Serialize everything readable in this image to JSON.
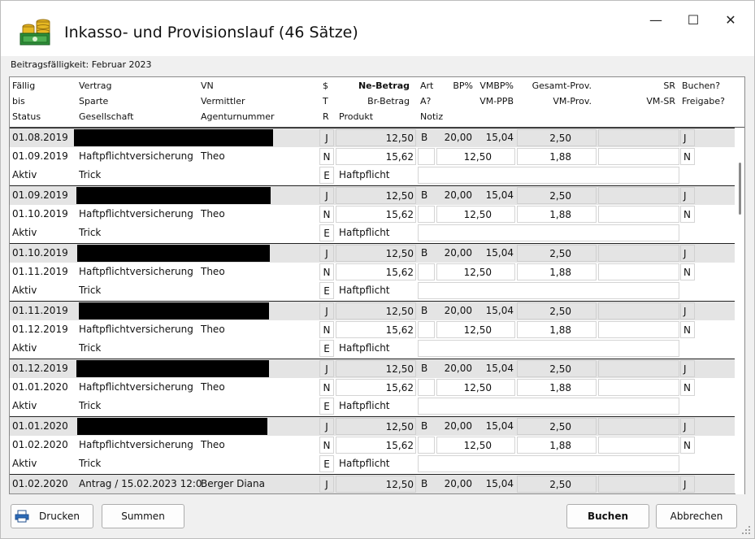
{
  "window": {
    "title": "Inkasso- und Provisionslauf (46 Sätze)",
    "subtitle": "Beitragsfälligkeit: Februar 2023",
    "minimize_glyph": "—",
    "maximize_glyph": "☐",
    "close_glyph": "✕"
  },
  "header": {
    "row1": {
      "faellig": "Fällig",
      "vertrag": "Vertrag",
      "vn": "VN",
      "s": "$",
      "ne_betrag": "Ne-Betrag",
      "art": "Art",
      "bp": "BP%",
      "vmbp": "VMBP%",
      "gesamt_prov": "Gesamt-Prov.",
      "sr": "SR",
      "buchen": "Buchen?"
    },
    "row2": {
      "bis": "bis",
      "sparte": "Sparte",
      "vermittler": "Vermittler",
      "t": "T",
      "br_betrag": "Br-Betrag",
      "a": "A?",
      "vm_ppb": "VM-PPB",
      "vm_prov": "VM-Prov.",
      "vm_sr": "VM-SR",
      "freigabe": "Freigabe?"
    },
    "row3": {
      "status": "Status",
      "gesellschaft": "Gesellschaft",
      "agenturnummer": "Agenturnummer",
      "r": "R",
      "produkt": "Produkt",
      "notiz": "Notiz"
    }
  },
  "records": [
    {
      "faellig": "01.08.2019",
      "s": "J",
      "ne_betrag": "12,50",
      "art": "B",
      "bp": "20,00",
      "vmbp": "15,04",
      "gesamt_prov": "2,50",
      "buchen": "J",
      "bis": "01.09.2019",
      "sparte": "Haftpflichtversicherung",
      "vermittler": "Theo",
      "t": "N",
      "br_betrag": "15,62",
      "vm_ppb": "12,50",
      "vm_prov": "1,88",
      "freigabe": "N",
      "status": "Aktiv",
      "gesellschaft": "Trick",
      "r": "E",
      "produkt": "Haftpflicht"
    },
    {
      "faellig": "01.09.2019",
      "s": "J",
      "ne_betrag": "12,50",
      "art": "B",
      "bp": "20,00",
      "vmbp": "15,04",
      "gesamt_prov": "2,50",
      "buchen": "J",
      "bis": "01.10.2019",
      "sparte": "Haftpflichtversicherung",
      "vermittler": "Theo",
      "t": "N",
      "br_betrag": "15,62",
      "vm_ppb": "12,50",
      "vm_prov": "1,88",
      "freigabe": "N",
      "status": "Aktiv",
      "gesellschaft": "Trick",
      "r": "E",
      "produkt": "Haftpflicht"
    },
    {
      "faellig": "01.10.2019",
      "s": "J",
      "ne_betrag": "12,50",
      "art": "B",
      "bp": "20,00",
      "vmbp": "15,04",
      "gesamt_prov": "2,50",
      "buchen": "J",
      "bis": "01.11.2019",
      "sparte": "Haftpflichtversicherung",
      "vermittler": "Theo",
      "t": "N",
      "br_betrag": "15,62",
      "vm_ppb": "12,50",
      "vm_prov": "1,88",
      "freigabe": "N",
      "status": "Aktiv",
      "gesellschaft": "Trick",
      "r": "E",
      "produkt": "Haftpflicht"
    },
    {
      "faellig": "01.11.2019",
      "s": "J",
      "ne_betrag": "12,50",
      "art": "B",
      "bp": "20,00",
      "vmbp": "15,04",
      "gesamt_prov": "2,50",
      "buchen": "J",
      "bis": "01.12.2019",
      "sparte": "Haftpflichtversicherung",
      "vermittler": "Theo",
      "t": "N",
      "br_betrag": "15,62",
      "vm_ppb": "12,50",
      "vm_prov": "1,88",
      "freigabe": "N",
      "status": "Aktiv",
      "gesellschaft": "Trick",
      "r": "E",
      "produkt": "Haftpflicht"
    },
    {
      "faellig": "01.12.2019",
      "s": "J",
      "ne_betrag": "12,50",
      "art": "B",
      "bp": "20,00",
      "vmbp": "15,04",
      "gesamt_prov": "2,50",
      "buchen": "J",
      "bis": "01.01.2020",
      "sparte": "Haftpflichtversicherung",
      "vermittler": "Theo",
      "t": "N",
      "br_betrag": "15,62",
      "vm_ppb": "12,50",
      "vm_prov": "1,88",
      "freigabe": "N",
      "status": "Aktiv",
      "gesellschaft": "Trick",
      "r": "E",
      "produkt": "Haftpflicht"
    },
    {
      "faellig": "01.01.2020",
      "s": "J",
      "ne_betrag": "12,50",
      "art": "B",
      "bp": "20,00",
      "vmbp": "15,04",
      "gesamt_prov": "2,50",
      "buchen": "J",
      "bis": "01.02.2020",
      "sparte": "Haftpflichtversicherung",
      "vermittler": "Theo",
      "t": "N",
      "br_betrag": "15,62",
      "vm_ppb": "12,50",
      "vm_prov": "1,88",
      "freigabe": "N",
      "status": "Aktiv",
      "gesellschaft": "Trick",
      "r": "E",
      "produkt": "Haftpflicht"
    }
  ],
  "partial_record": {
    "faellig": "01.02.2020",
    "vertrag": "Antrag / 15.02.2023 12:0",
    "vn": "Berger Diana",
    "s": "J",
    "ne_betrag": "12,50",
    "art": "B",
    "bp": "20,00",
    "vmbp": "15,04",
    "gesamt_prov": "2,50",
    "buchen": "J"
  },
  "buttons": {
    "print": "Drucken",
    "sum": "Summen",
    "book": "Buchen",
    "cancel": "Abbrechen"
  },
  "icons": {
    "app": "money-stack-icon",
    "print": "printer-icon"
  }
}
